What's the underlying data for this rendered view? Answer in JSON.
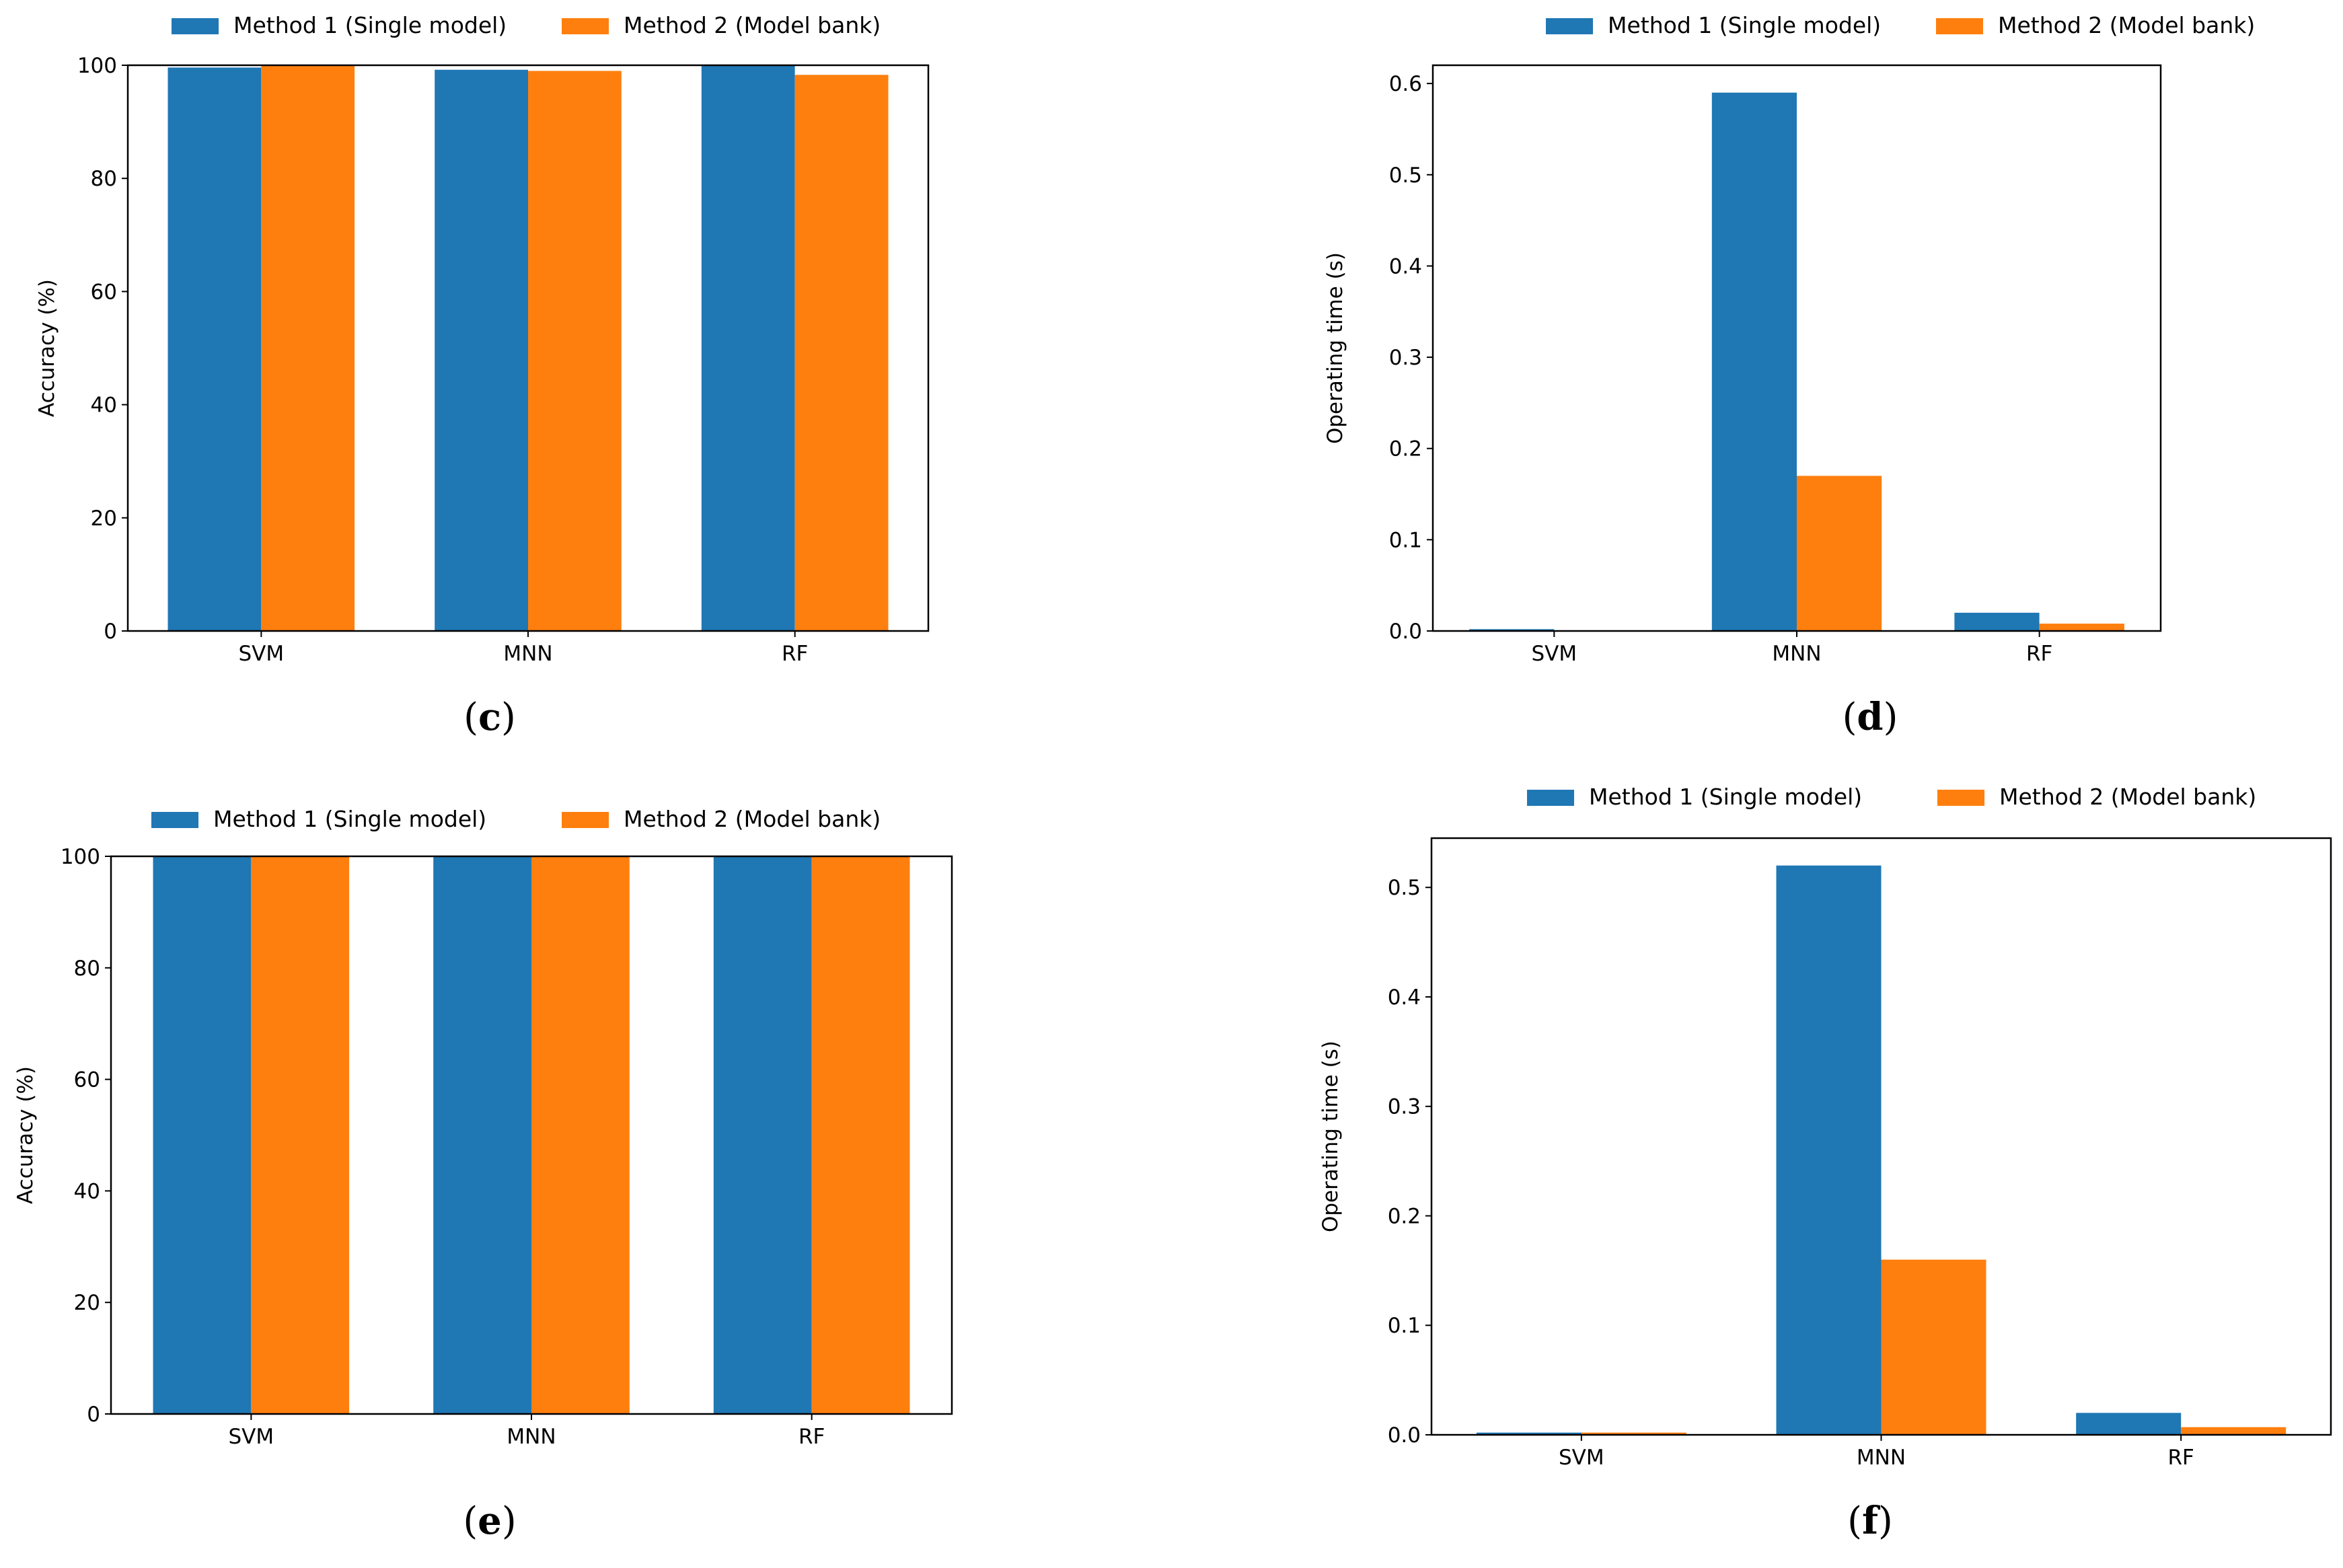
{
  "colors": {
    "method1": "#1f77b4",
    "method2": "#ff7f0e",
    "frame": "#000000"
  },
  "chart_data": [
    {
      "panel": "c",
      "type": "bar",
      "categories": [
        "SVM",
        "MNN",
        "RF"
      ],
      "series": [
        {
          "name": "Method 1 (Single model)",
          "values": [
            99.6,
            99.2,
            99.9
          ]
        },
        {
          "name": "Method 2 (Model bank)",
          "values": [
            99.9,
            99.0,
            98.3
          ]
        }
      ],
      "ylabel": "Accuracy (%)",
      "xlabel": "",
      "ylim": [
        0,
        100
      ],
      "yticks": [
        "0",
        "20",
        "40",
        "60",
        "80",
        "100"
      ],
      "ytick_values": [
        0,
        20,
        40,
        60,
        80,
        100
      ],
      "legend": "top-outside",
      "grid": false,
      "caption_open": "(",
      "caption_letter": "c",
      "caption_close": ")"
    },
    {
      "panel": "d",
      "type": "bar",
      "categories": [
        "SVM",
        "MNN",
        "RF"
      ],
      "series": [
        {
          "name": "Method 1 (Single model)",
          "values": [
            0.002,
            0.59,
            0.02
          ]
        },
        {
          "name": "Method 2 (Model bank)",
          "values": [
            0.0005,
            0.17,
            0.008
          ]
        }
      ],
      "ylabel": "Operating time (s)",
      "xlabel": "",
      "ylim": [
        0,
        0.62
      ],
      "yticks": [
        "0.0",
        "0.1",
        "0.2",
        "0.3",
        "0.4",
        "0.5",
        "0.6"
      ],
      "ytick_values": [
        0,
        0.1,
        0.2,
        0.3,
        0.4,
        0.5,
        0.6
      ],
      "legend": "top-outside",
      "grid": false,
      "caption_open": "(",
      "caption_letter": "d",
      "caption_close": ")"
    },
    {
      "panel": "e",
      "type": "bar",
      "categories": [
        "SVM",
        "MNN",
        "RF"
      ],
      "series": [
        {
          "name": "Method 1 (Single model)",
          "values": [
            100,
            100,
            100
          ]
        },
        {
          "name": "Method 2 (Model bank)",
          "values": [
            100,
            100,
            100
          ]
        }
      ],
      "ylabel": "Accuracy (%)",
      "xlabel": "",
      "ylim": [
        0,
        100
      ],
      "yticks": [
        "0",
        "20",
        "40",
        "60",
        "80",
        "100"
      ],
      "ytick_values": [
        0,
        20,
        40,
        60,
        80,
        100
      ],
      "legend": "top-outside",
      "grid": false,
      "caption_open": "(",
      "caption_letter": "e",
      "caption_close": ")"
    },
    {
      "panel": "f",
      "type": "bar",
      "categories": [
        "SVM",
        "MNN",
        "RF"
      ],
      "series": [
        {
          "name": "Method 1 (Single model)",
          "values": [
            0.002,
            0.52,
            0.02
          ]
        },
        {
          "name": "Method 2 (Model bank)",
          "values": [
            0.002,
            0.16,
            0.007
          ]
        }
      ],
      "ylabel": "Operating time (s)",
      "xlabel": "",
      "ylim": [
        0,
        0.545
      ],
      "yticks": [
        "0.0",
        "0.1",
        "0.2",
        "0.3",
        "0.4",
        "0.5"
      ],
      "ytick_values": [
        0,
        0.1,
        0.2,
        0.3,
        0.4,
        0.5
      ],
      "legend": "top-outside",
      "grid": false,
      "caption_open": "(",
      "caption_letter": "f",
      "caption_close": ")"
    }
  ]
}
